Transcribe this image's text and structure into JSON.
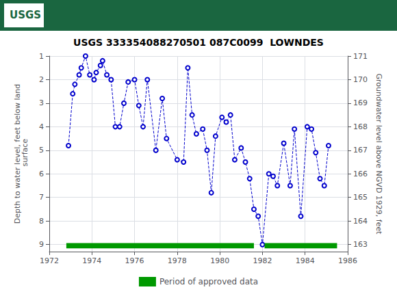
{
  "chart_data": {
    "type": "line",
    "title": "USGS 333354088270501 087C0099  LOWNDES",
    "annotations": [
      {
        "text": "USGS"
      }
    ],
    "ylabel": "Depth to water level, feet below land\n surface",
    "y2label": "Groundwater level above NGVD 1929, feet",
    "xlim": [
      1972,
      1986
    ],
    "xticks": [
      1972,
      1974,
      1976,
      1978,
      1980,
      1982,
      1984,
      1986
    ],
    "ylim": [
      9.3,
      1.0
    ],
    "yticks": [
      1.0,
      2.0,
      3.0,
      4.0,
      5.0,
      6.0,
      7.0,
      8.0,
      9.0
    ],
    "y2lim": [
      162.7,
      171.0
    ],
    "y2ticks": [
      163.0,
      164.0,
      165.0,
      166.0,
      167.0,
      168.0,
      169.0,
      170.0,
      171.0
    ],
    "grid": true,
    "legend": "bottom",
    "series": [
      {
        "type": "line",
        "color": "#0000CC",
        "marker": "circle",
        "line_style": "dashed",
        "x": [
          1972.9,
          1973.1,
          1973.2,
          1973.4,
          1973.5,
          1973.7,
          1973.9,
          1974.1,
          1974.2,
          1974.4,
          1974.5,
          1974.7,
          1974.9,
          1975.1,
          1975.3,
          1975.5,
          1975.7,
          1976.0,
          1976.2,
          1976.4,
          1976.6,
          1977.0,
          1977.3,
          1977.5,
          1978.0,
          1978.3,
          1978.5,
          1978.7,
          1978.9,
          1979.2,
          1979.4,
          1979.6,
          1979.8,
          1980.1,
          1980.3,
          1980.5,
          1980.7,
          1981.0,
          1981.2,
          1981.4,
          1981.6,
          1981.8,
          1982.0,
          1982.3,
          1982.5,
          1982.7,
          1983.0,
          1983.3,
          1983.5,
          1983.8,
          1984.1,
          1984.3,
          1984.5,
          1984.7,
          1984.9,
          1985.1
        ],
        "values": [
          4.8,
          2.6,
          2.2,
          1.8,
          1.5,
          1.0,
          1.8,
          2.0,
          1.7,
          1.4,
          1.2,
          1.8,
          2.0,
          4.0,
          4.0,
          3.0,
          2.1,
          2.0,
          3.1,
          4.0,
          2.0,
          5.0,
          2.8,
          4.5,
          5.4,
          5.5,
          1.5,
          3.5,
          4.3,
          4.1,
          5.0,
          6.8,
          4.4,
          3.6,
          3.8,
          3.5,
          5.4,
          4.9,
          5.5,
          6.2,
          7.5,
          7.8,
          9.0,
          6.0,
          6.1,
          6.5,
          4.7,
          6.5,
          4.1,
          7.8,
          4.0,
          4.1,
          5.1,
          6.2,
          6.5,
          4.8
        ]
      },
      {
        "name": "Period of approved data",
        "type": "bar",
        "orientation": "horizontal",
        "color": "#009900",
        "y": 9.05,
        "values": [
          [
            1972.8,
            1981.6
          ],
          [
            1982.1,
            1985.5
          ]
        ]
      }
    ]
  }
}
